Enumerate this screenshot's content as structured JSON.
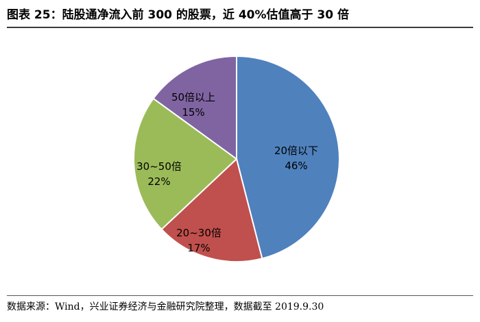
{
  "header": {
    "title": "图表 25：陆股通净流入前 300 的股票，近 40%估值高于 30 倍"
  },
  "footer": {
    "source": "数据来源：Wind，兴业证券经济与金融研究院整理，数据截至 2019.9.30"
  },
  "chart_data": {
    "type": "pie",
    "start": "12 o'clock",
    "direction": "clockwise",
    "legend": "none",
    "slices": [
      {
        "label": "20倍以下",
        "value": 46,
        "value_label": "46%",
        "color": "#4F81BD"
      },
      {
        "label": "20~30倍",
        "value": 17,
        "value_label": "17%",
        "color": "#C0504D"
      },
      {
        "label": "30~50倍",
        "value": 22,
        "value_label": "22%",
        "color": "#9BBB59"
      },
      {
        "label": "50倍以上",
        "value": 15,
        "value_label": "15%",
        "color": "#8064A2"
      }
    ]
  }
}
